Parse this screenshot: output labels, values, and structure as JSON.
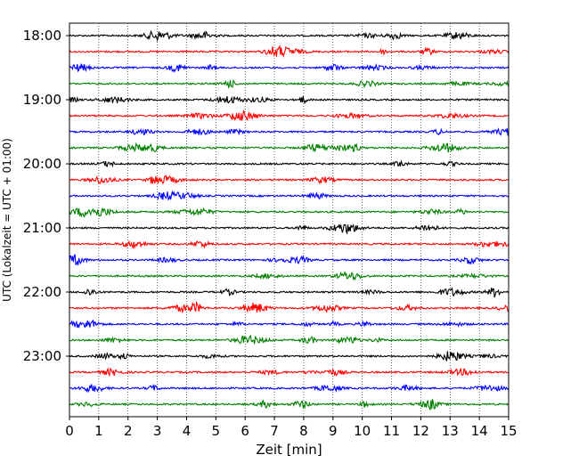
{
  "chart_data": {
    "type": "line",
    "title": "",
    "xlabel": "Zeit  [min]",
    "ylabel": "UTC (Lokalzeit = UTC + 01:00)",
    "xlim": [
      0,
      15
    ],
    "x_ticks": [
      0,
      1,
      2,
      3,
      4,
      5,
      6,
      7,
      8,
      9,
      10,
      11,
      12,
      13,
      14,
      15
    ],
    "x_tick_labels": [
      "0",
      "1",
      "2",
      "3",
      "4",
      "5",
      "6",
      "7",
      "8",
      "9",
      "10",
      "11",
      "12",
      "13",
      "14",
      "15"
    ],
    "y_tick_labels": [
      "18:00",
      "19:00",
      "20:00",
      "21:00",
      "22:00",
      "23:00"
    ],
    "trace_interval_min": 15,
    "grid": "vertical dotted",
    "series_colors": [
      "#000000",
      "#ff0000",
      "#0000ff",
      "#008000"
    ],
    "traces": [
      {
        "time": "18:00",
        "color": "#000000"
      },
      {
        "time": "18:15",
        "color": "#ff0000"
      },
      {
        "time": "18:30",
        "color": "#0000ff"
      },
      {
        "time": "18:45",
        "color": "#008000"
      },
      {
        "time": "19:00",
        "color": "#000000"
      },
      {
        "time": "19:15",
        "color": "#ff0000"
      },
      {
        "time": "19:30",
        "color": "#0000ff"
      },
      {
        "time": "19:45",
        "color": "#008000"
      },
      {
        "time": "20:00",
        "color": "#000000"
      },
      {
        "time": "20:15",
        "color": "#ff0000"
      },
      {
        "time": "20:30",
        "color": "#0000ff"
      },
      {
        "time": "20:45",
        "color": "#008000"
      },
      {
        "time": "21:00",
        "color": "#000000"
      },
      {
        "time": "21:15",
        "color": "#ff0000"
      },
      {
        "time": "21:30",
        "color": "#0000ff"
      },
      {
        "time": "21:45",
        "color": "#008000"
      },
      {
        "time": "22:00",
        "color": "#000000"
      },
      {
        "time": "22:15",
        "color": "#ff0000"
      },
      {
        "time": "22:30",
        "color": "#0000ff"
      },
      {
        "time": "22:45",
        "color": "#008000"
      },
      {
        "time": "23:00",
        "color": "#000000"
      },
      {
        "time": "23:15",
        "color": "#ff0000"
      },
      {
        "time": "23:30",
        "color": "#0000ff"
      },
      {
        "time": "23:45",
        "color": "#008000"
      }
    ]
  }
}
